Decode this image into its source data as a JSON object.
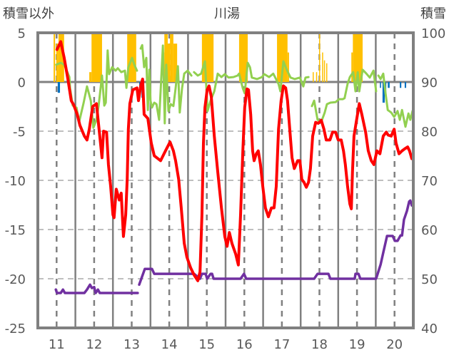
{
  "chart_data": {
    "type": "line",
    "title": "川湯",
    "left_axis_title": "積雪以外",
    "right_axis_title": "積雪",
    "left_ylim": [
      -25,
      5
    ],
    "left_ticks": [
      "5",
      "0",
      "-5",
      "-10",
      "-15",
      "-20",
      "-25"
    ],
    "left_tick_values": [
      5,
      0,
      -5,
      -10,
      -15,
      -20,
      -25
    ],
    "right_ylim": [
      40,
      100
    ],
    "right_ticks": [
      "100",
      "90",
      "80",
      "70",
      "60",
      "50",
      "40"
    ],
    "right_tick_values": [
      100,
      90,
      80,
      70,
      60,
      50,
      40
    ],
    "xlim": [
      10.5,
      20.5
    ],
    "x_ticks": [
      "11",
      "12",
      "13",
      "14",
      "15",
      "16",
      "17",
      "18",
      "19",
      "20"
    ],
    "x_tick_values": [
      11,
      12,
      13,
      14,
      15,
      16,
      17,
      18,
      19,
      20
    ],
    "grid": true,
    "colors": {
      "temperature": "#ff0000",
      "green": "#92d050",
      "snow_depth": "#7030a0",
      "bars_pos": "#ffc000",
      "bars_neg": "#0070c0",
      "axis": "#808080",
      "grid": "#bfbfbf"
    },
    "bars_positive": [
      [
        10.92,
        10.96,
        5.5
      ],
      [
        10.99,
        11.05,
        3.9
      ],
      [
        11.05,
        11.2,
        5.5
      ],
      [
        11.87,
        11.93,
        1.0
      ],
      [
        11.93,
        12.21,
        5.5
      ],
      [
        12.88,
        13.12,
        5.5
      ],
      [
        13.83,
        13.87,
        3.0
      ],
      [
        13.87,
        13.96,
        5.5
      ],
      [
        13.96,
        14.02,
        3.9
      ],
      [
        14.02,
        14.11,
        5.5
      ],
      [
        14.11,
        14.21,
        3.9
      ],
      [
        14.87,
        15.18,
        5.5
      ],
      [
        15.86,
        16.09,
        5.5
      ],
      [
        16.87,
        17.15,
        5.5
      ],
      [
        17.15,
        17.19,
        3.0
      ],
      [
        17.82,
        17.84,
        1.0
      ],
      [
        17.91,
        17.93,
        1.0
      ],
      [
        17.99,
        18.01,
        5.5
      ],
      [
        18.07,
        18.09,
        3.0
      ],
      [
        18.12,
        18.14,
        2.2
      ],
      [
        18.18,
        18.2,
        1.9
      ],
      [
        18.85,
        18.89,
        3.0
      ],
      [
        18.89,
        19.15,
        5.5
      ]
    ],
    "bars_negative": [
      [
        11.03,
        11.09,
        -1.1
      ],
      [
        13.2,
        13.24,
        -0.4
      ],
      [
        13.26,
        13.33,
        -1.6
      ],
      [
        19.61,
        19.64,
        -0.6
      ],
      [
        19.68,
        19.74,
        -2.1
      ],
      [
        19.74,
        19.78,
        -1.1
      ],
      [
        19.82,
        19.87,
        -0.6
      ],
      [
        20.14,
        20.18,
        -0.6
      ],
      [
        20.27,
        20.31,
        -0.6
      ]
    ],
    "temperature": [
      [
        11.01,
        3.3
      ],
      [
        11.11,
        4.1
      ],
      [
        11.2,
        2.5
      ],
      [
        11.3,
        0.3
      ],
      [
        11.39,
        -1.9
      ],
      [
        11.45,
        -2.3
      ],
      [
        11.55,
        -3.3
      ],
      [
        11.62,
        -4.4
      ],
      [
        11.74,
        -5.5
      ],
      [
        11.81,
        -5.9
      ],
      [
        11.87,
        -4.8
      ],
      [
        11.96,
        -2.5
      ],
      [
        12.06,
        -2.2
      ],
      [
        12.12,
        -4.4
      ],
      [
        12.21,
        -7.7
      ],
      [
        12.25,
        -5
      ],
      [
        12.33,
        -5.1
      ],
      [
        12.38,
        -8.4
      ],
      [
        12.44,
        -10.6
      ],
      [
        12.5,
        -13.5
      ],
      [
        12.53,
        -13.8
      ],
      [
        12.59,
        -10.9
      ],
      [
        12.67,
        -12
      ],
      [
        12.72,
        -11.3
      ],
      [
        12.78,
        -15.7
      ],
      [
        12.84,
        -13.5
      ],
      [
        12.88,
        -9.9
      ],
      [
        12.91,
        -4.8
      ],
      [
        12.95,
        -2.2
      ],
      [
        13.03,
        -0.8
      ],
      [
        13.14,
        -0.6
      ],
      [
        13.18,
        -1.9
      ],
      [
        13.24,
        -0.4
      ],
      [
        13.29,
        0.3
      ],
      [
        13.33,
        -3.3
      ],
      [
        13.43,
        -3.7
      ],
      [
        13.52,
        -6.2
      ],
      [
        13.6,
        -7.5
      ],
      [
        13.67,
        -7.7
      ],
      [
        13.77,
        -8
      ],
      [
        13.9,
        -7
      ],
      [
        14.02,
        -6.1
      ],
      [
        14.11,
        -7
      ],
      [
        14.17,
        -8
      ],
      [
        14.25,
        -9.9
      ],
      [
        14.32,
        -12.8
      ],
      [
        14.4,
        -16.4
      ],
      [
        14.47,
        -17.8
      ],
      [
        14.57,
        -18.9
      ],
      [
        14.66,
        -19.6
      ],
      [
        14.76,
        -20.2
      ],
      [
        14.82,
        -19.3
      ],
      [
        14.87,
        -13.5
      ],
      [
        14.91,
        -6.2
      ],
      [
        14.95,
        -2.6
      ],
      [
        15.01,
        -0.8
      ],
      [
        15.06,
        -0.4
      ],
      [
        15.12,
        -1.5
      ],
      [
        15.2,
        -5.5
      ],
      [
        15.29,
        -9.1
      ],
      [
        15.39,
        -12.8
      ],
      [
        15.48,
        -15.7
      ],
      [
        15.54,
        -16.7
      ],
      [
        15.6,
        -15.3
      ],
      [
        15.67,
        -16.4
      ],
      [
        15.77,
        -17.5
      ],
      [
        15.84,
        -18.6
      ],
      [
        15.9,
        -13.5
      ],
      [
        15.96,
        -7
      ],
      [
        16.01,
        -2.6
      ],
      [
        16.07,
        -0.7
      ],
      [
        16.11,
        -0.8
      ],
      [
        16.17,
        -3.3
      ],
      [
        16.22,
        -7
      ],
      [
        16.26,
        -8
      ],
      [
        16.32,
        -7.3
      ],
      [
        16.37,
        -7
      ],
      [
        16.43,
        -8.4
      ],
      [
        16.49,
        -10.6
      ],
      [
        16.56,
        -12.8
      ],
      [
        16.64,
        -13.7
      ],
      [
        16.72,
        -12.8
      ],
      [
        16.79,
        -12.8
      ],
      [
        16.85,
        -10.6
      ],
      [
        16.91,
        -4.8
      ],
      [
        16.98,
        -1.9
      ],
      [
        17.04,
        -0.4
      ],
      [
        17.1,
        -0.6
      ],
      [
        17.15,
        -1.9
      ],
      [
        17.21,
        -4.8
      ],
      [
        17.27,
        -7.7
      ],
      [
        17.33,
        -8.8
      ],
      [
        17.42,
        -8
      ],
      [
        17.48,
        -8
      ],
      [
        17.53,
        -9.9
      ],
      [
        17.59,
        -10.2
      ],
      [
        17.65,
        -10.7
      ],
      [
        17.71,
        -10.2
      ],
      [
        17.76,
        -8.8
      ],
      [
        17.82,
        -5.5
      ],
      [
        17.9,
        -4.1
      ],
      [
        17.97,
        -4.2
      ],
      [
        18.05,
        -3.9
      ],
      [
        18.12,
        -4.8
      ],
      [
        18.18,
        -5.9
      ],
      [
        18.28,
        -5.9
      ],
      [
        18.35,
        -5.1
      ],
      [
        18.43,
        -5.1
      ],
      [
        18.5,
        -5.9
      ],
      [
        18.58,
        -5.9
      ],
      [
        18.64,
        -7
      ],
      [
        18.69,
        -8.4
      ],
      [
        18.75,
        -10.6
      ],
      [
        18.81,
        -12.4
      ],
      [
        18.85,
        -12.9
      ],
      [
        18.88,
        -9.1
      ],
      [
        18.92,
        -5.5
      ],
      [
        18.98,
        -4.1
      ],
      [
        19.06,
        -2.2
      ],
      [
        19.13,
        -3.3
      ],
      [
        19.23,
        -5.1
      ],
      [
        19.3,
        -7
      ],
      [
        19.38,
        -8
      ],
      [
        19.45,
        -8.4
      ],
      [
        19.53,
        -7
      ],
      [
        19.61,
        -7.3
      ],
      [
        19.7,
        -5.5
      ],
      [
        19.78,
        -5.1
      ],
      [
        19.83,
        -5.4
      ],
      [
        19.91,
        -5.5
      ],
      [
        19.99,
        -4.8
      ],
      [
        20.04,
        -6.2
      ],
      [
        20.12,
        -7.3
      ],
      [
        20.2,
        -7
      ],
      [
        20.27,
        -6.8
      ],
      [
        20.35,
        -6.6
      ],
      [
        20.4,
        -7
      ],
      [
        20.46,
        -7.8
      ]
    ],
    "green_segments": [
      [
        [
          10.99,
          93.5
        ],
        [
          11.11,
          93.9
        ],
        [
          11.2,
          93.5
        ],
        [
          11.26,
          92.5
        ],
        [
          11.34,
          91.0
        ],
        [
          11.36,
          88.7
        ],
        [
          11.43,
          85.2
        ],
        [
          11.53,
          84.8
        ],
        [
          11.6,
          81.9
        ],
        [
          11.72,
          85.8
        ],
        [
          11.81,
          89.1
        ],
        [
          11.91,
          86.2
        ],
        [
          11.98,
          80.7
        ],
        [
          12.06,
          82.3
        ],
        [
          12.12,
          85.2
        ],
        [
          12.21,
          91.3
        ],
        [
          12.27,
          85.2
        ],
        [
          12.31,
          85.8
        ],
        [
          12.36,
          96.4
        ],
        [
          12.4,
          91.6
        ],
        [
          12.48,
          93.0
        ],
        [
          12.57,
          92.3
        ],
        [
          12.63,
          92.8
        ],
        [
          12.72,
          92.0
        ],
        [
          12.82,
          92.3
        ],
        [
          12.86,
          88.8
        ],
        [
          12.91,
          93.0
        ],
        [
          13.01,
          94.9
        ],
        [
          13.07,
          93.5
        ],
        [
          13.14,
          92.3
        ]
      ],
      [
        [
          13.24,
          96.8
        ],
        [
          13.28,
          97.5
        ],
        [
          13.33,
          93.0
        ],
        [
          13.39,
          94.9
        ],
        [
          13.43,
          84.3
        ],
        [
          13.47,
          92.5
        ],
        [
          13.5,
          86.2
        ],
        [
          13.54,
          84.8
        ],
        [
          13.6,
          85.8
        ],
        [
          13.66,
          85.5
        ],
        [
          13.73,
          82.3
        ],
        [
          13.77,
          88.1
        ],
        [
          13.83,
          97.4
        ],
        [
          13.88,
          81.6
        ],
        [
          13.92,
          93.5
        ],
        [
          13.98,
          84.1
        ],
        [
          14.04,
          85.5
        ],
        [
          14.11,
          85.1
        ],
        [
          14.17,
          88.7
        ],
        [
          14.23,
          93.2
        ],
        [
          14.28,
          83.8
        ],
        [
          14.34,
          88.7
        ],
        [
          14.4,
          91.7
        ],
        [
          14.49,
          92.3
        ],
        [
          14.59,
          91.3
        ]
      ],
      [
        [
          14.66,
          92.0
        ],
        [
          14.76,
          91.3
        ],
        [
          14.85,
          91.7
        ],
        [
          14.95,
          94.2
        ],
        [
          15.02,
          84.1
        ],
        [
          15.1,
          86.2
        ],
        [
          15.2,
          88.1
        ],
        [
          15.29,
          91.7
        ],
        [
          15.39,
          91.0
        ],
        [
          15.48,
          91.6
        ],
        [
          15.58,
          90.9
        ],
        [
          15.71,
          91.0
        ],
        [
          15.82,
          91.3
        ],
        [
          15.86,
          91.7
        ],
        [
          15.96,
          88.7
        ],
        [
          16.01,
          87.7
        ],
        [
          16.09,
          93.9
        ],
        [
          16.15,
          93.0
        ],
        [
          16.2,
          90.9
        ],
        [
          16.34,
          90.6
        ],
        [
          16.47,
          91.0
        ],
        [
          16.53,
          91.6
        ],
        [
          16.66,
          91.0
        ],
        [
          16.77,
          91.7
        ],
        [
          16.91,
          89.6
        ],
        [
          16.96,
          88.1
        ],
        [
          17.04,
          94.2
        ],
        [
          17.13,
          92.5
        ],
        [
          17.23,
          90.9
        ],
        [
          17.34,
          90.6
        ],
        [
          17.48,
          90.9
        ],
        [
          17.57,
          89.1
        ],
        [
          17.63,
          90.9
        ],
        [
          17.71,
          91.0
        ]
      ],
      [
        [
          17.8,
          85.1
        ],
        [
          17.86,
          86.2
        ],
        [
          17.95,
          82.3
        ],
        [
          18.05,
          81.9
        ],
        [
          18.14,
          83.8
        ],
        [
          18.2,
          85.5
        ],
        [
          18.29,
          85.8
        ],
        [
          18.43,
          85.9
        ],
        [
          18.52,
          86.5
        ],
        [
          18.62,
          86.5
        ],
        [
          18.67,
          86.7
        ],
        [
          18.75,
          89.6
        ],
        [
          18.81,
          91.0
        ],
        [
          18.9,
          92.0
        ],
        [
          18.96,
          88.1
        ],
        [
          19.02,
          92.0
        ],
        [
          19.06,
          88.1
        ],
        [
          19.15,
          92.5
        ],
        [
          19.25,
          91.7
        ],
        [
          19.34,
          90.9
        ],
        [
          19.44,
          92.3
        ],
        [
          19.51,
          88.1
        ]
      ],
      [
        [
          19.57,
          91.3
        ],
        [
          19.63,
          90.6
        ],
        [
          19.7,
          91.7
        ],
        [
          19.76,
          87.7
        ],
        [
          19.82,
          84.3
        ],
        [
          19.91,
          83.8
        ],
        [
          19.99,
          82.9
        ],
        [
          20.08,
          84.1
        ],
        [
          20.14,
          82.3
        ],
        [
          20.2,
          84.3
        ],
        [
          20.29,
          80.9
        ],
        [
          20.37,
          83.6
        ],
        [
          20.42,
          82.3
        ],
        [
          20.48,
          84.1
        ]
      ]
    ],
    "snow_depth_segments": [
      [
        [
          10.98,
          47.8
        ],
        [
          11.01,
          47.1
        ],
        [
          11.11,
          47.1
        ],
        [
          11.17,
          47.8
        ],
        [
          11.22,
          47.1
        ],
        [
          11.74,
          47.1
        ],
        [
          11.81,
          47.8
        ],
        [
          11.89,
          48.8
        ],
        [
          11.94,
          48.1
        ],
        [
          12.0,
          48.3
        ],
        [
          12.04,
          47.1
        ],
        [
          12.1,
          47.8
        ],
        [
          12.15,
          47.1
        ],
        [
          13.16,
          47.1
        ]
      ],
      [
        [
          13.2,
          48.8
        ],
        [
          13.35,
          52
        ],
        [
          13.54,
          52
        ],
        [
          13.6,
          51
        ],
        [
          14.66,
          51
        ],
        [
          14.82,
          50
        ],
        [
          14.87,
          51
        ],
        [
          14.97,
          51
        ],
        [
          15.01,
          50
        ],
        [
          15.1,
          51
        ],
        [
          15.14,
          51
        ],
        [
          15.18,
          50
        ],
        [
          15.9,
          50
        ],
        [
          15.99,
          51
        ],
        [
          16.05,
          50
        ],
        [
          17.86,
          50
        ],
        [
          17.95,
          51
        ],
        [
          18.24,
          51
        ],
        [
          18.29,
          50
        ],
        [
          18.94,
          50
        ],
        [
          18.96,
          51
        ],
        [
          19.04,
          51
        ],
        [
          19.09,
          50
        ],
        [
          19.51,
          50
        ],
        [
          19.63,
          52.9
        ],
        [
          19.7,
          55.3
        ],
        [
          19.8,
          58.7
        ],
        [
          19.95,
          58.7
        ],
        [
          20.01,
          57.7
        ],
        [
          20.08,
          57.7
        ],
        [
          20.16,
          58.8
        ],
        [
          20.2,
          58.8
        ],
        [
          20.25,
          62.0
        ],
        [
          20.33,
          63.8
        ],
        [
          20.39,
          65.7
        ],
        [
          20.42,
          65.9
        ],
        [
          20.46,
          64.9
        ]
      ]
    ]
  }
}
